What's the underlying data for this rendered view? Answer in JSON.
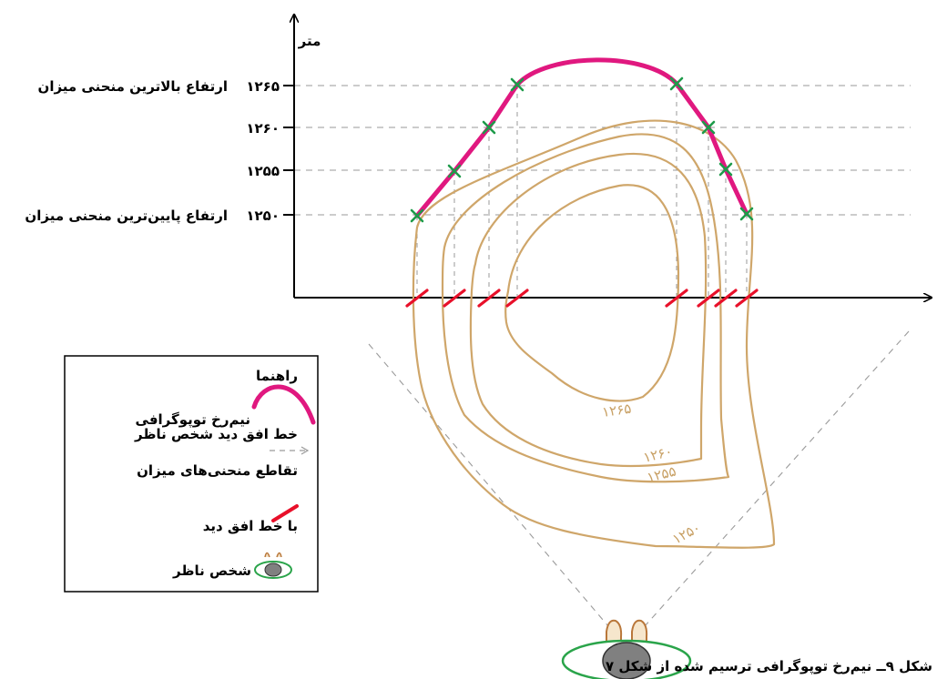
{
  "axis": {
    "y_unit": "متر"
  },
  "elevations": [
    {
      "value": "۱۲۶۵",
      "note": "ارتفاع بالاترین منحنی میزان"
    },
    {
      "value": "۱۲۶۰",
      "note": ""
    },
    {
      "value": "۱۲۵۵",
      "note": ""
    },
    {
      "value": "۱۲۵۰",
      "note": "ارتفاع پایین‌ترین منحنی میزان"
    }
  ],
  "contour_labels": [
    "۱۲۶۵",
    "۱۲۶۰",
    "۱۲۵۵",
    "۱۲۵۰"
  ],
  "legend": {
    "title": "راهنما",
    "items": [
      "نیم‌رخ توپوگرافی",
      "خط افق دید شخص ناظر",
      "تقاطع منحنی‌های میزان",
      "با خط افق دید",
      "شخص ناظر"
    ]
  },
  "caption": "شکل ۹ــ نیم‌رخ توپوگرافی ترسیم شده از شکل ۷",
  "colors": {
    "profile": "#e0187f",
    "contour": "#cfa66a",
    "marker": "#1e9b4a",
    "intersection": "#e8102a",
    "guide": "#9a9a9a",
    "observer_ring": "#2aa44a",
    "observer_head": "#808080"
  }
}
